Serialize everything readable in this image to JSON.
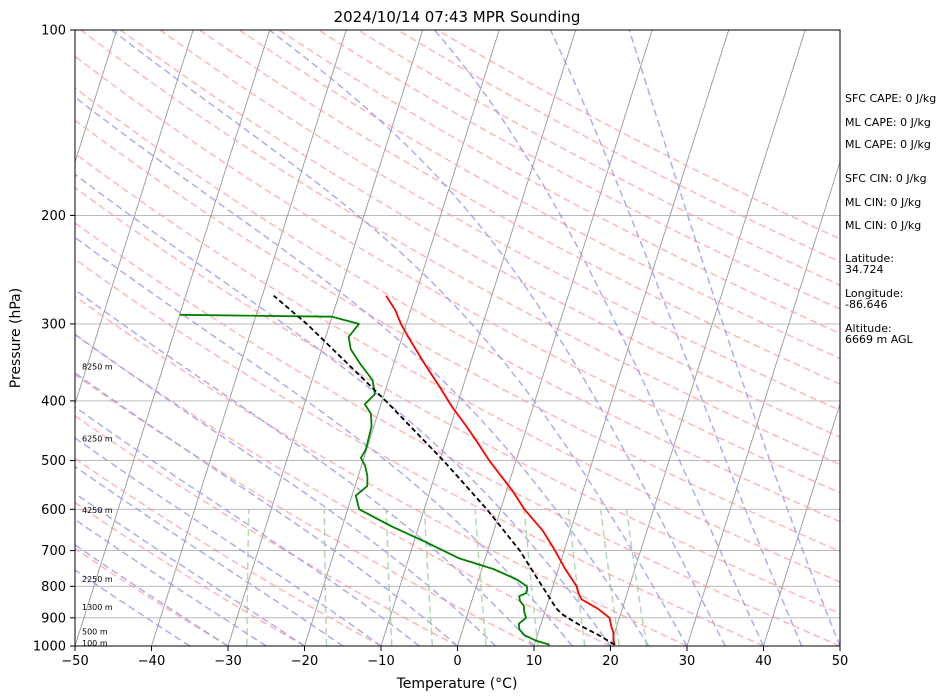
{
  "chart_data": {
    "type": "line",
    "title": "2024/10/14 07:43 MPR Sounding",
    "xlabel": "Temperature (°C)",
    "ylabel": "Pressure (hPa)",
    "xlim": [
      -50,
      50
    ],
    "ylim": [
      1000,
      100
    ],
    "y_scale": "log",
    "x_ticks": [
      -50,
      -40,
      -30,
      -20,
      -10,
      0,
      10,
      20,
      30,
      40,
      50
    ],
    "y_ticks": [
      1000,
      900,
      800,
      700,
      600,
      500,
      400,
      300,
      200,
      100
    ],
    "grid": "horizontal isobars",
    "colors": {
      "temperature": "#ff0000",
      "dewpoint": "#008000",
      "parcel": "#000000",
      "dry_adiabats": "#ff9999",
      "moist_adiabats": "#9999ee",
      "mixing_ratio": "#99cc99",
      "isotherms": "#999999"
    },
    "series": [
      {
        "key": "temperature",
        "points": [
          [
            995,
            20.5
          ],
          [
            980,
            20.2
          ],
          [
            950,
            19.8
          ],
          [
            930,
            19.3
          ],
          [
            900,
            18.7
          ],
          [
            870,
            16.8
          ],
          [
            840,
            14.3
          ],
          [
            820,
            13.6
          ],
          [
            800,
            13.1
          ],
          [
            750,
            10.9
          ],
          [
            700,
            8.8
          ],
          [
            650,
            6.4
          ],
          [
            600,
            3.1
          ],
          [
            560,
            0.8
          ],
          [
            530,
            -1.3
          ],
          [
            500,
            -3.5
          ],
          [
            470,
            -5.6
          ],
          [
            440,
            -7.9
          ],
          [
            410,
            -10.5
          ],
          [
            380,
            -13.0
          ],
          [
            350,
            -15.8
          ],
          [
            320,
            -18.7
          ],
          [
            300,
            -20.7
          ],
          [
            285,
            -22.0
          ],
          [
            270,
            -23.8
          ]
        ]
      },
      {
        "key": "dewpoint",
        "points": [
          [
            995,
            12.0
          ],
          [
            980,
            10.0
          ],
          [
            960,
            8.3
          ],
          [
            940,
            7.4
          ],
          [
            920,
            7.1
          ],
          [
            900,
            7.8
          ],
          [
            880,
            7.3
          ],
          [
            860,
            7.0
          ],
          [
            845,
            6.3
          ],
          [
            830,
            6.0
          ],
          [
            820,
            6.8
          ],
          [
            810,
            6.8
          ],
          [
            800,
            6.6
          ],
          [
            780,
            5.0
          ],
          [
            750,
            1.5
          ],
          [
            720,
            -3.5
          ],
          [
            680,
            -8.2
          ],
          [
            640,
            -13.5
          ],
          [
            600,
            -18.5
          ],
          [
            570,
            -19.5
          ],
          [
            550,
            -18.4
          ],
          [
            530,
            -18.8
          ],
          [
            510,
            -19.5
          ],
          [
            495,
            -20.4
          ],
          [
            480,
            -20.1
          ],
          [
            460,
            -20.2
          ],
          [
            440,
            -20.3
          ],
          [
            420,
            -20.9
          ],
          [
            405,
            -22.1
          ],
          [
            390,
            -21.2
          ],
          [
            370,
            -22.1
          ],
          [
            350,
            -24.2
          ],
          [
            330,
            -26.2
          ],
          [
            315,
            -27.0
          ],
          [
            300,
            -26.2
          ],
          [
            292,
            -30.0
          ],
          [
            290,
            -50.0
          ]
        ]
      },
      {
        "key": "parcel",
        "points": [
          [
            995,
            20.5
          ],
          [
            960,
            18.0
          ],
          [
            930,
            15.5
          ],
          [
            890,
            12.5
          ],
          [
            870,
            11.4
          ],
          [
            800,
            8.6
          ],
          [
            700,
            4.2
          ],
          [
            600,
            -1.8
          ],
          [
            500,
            -9.5
          ],
          [
            400,
            -19.5
          ],
          [
            300,
            -33.0
          ],
          [
            270,
            -38.5
          ]
        ]
      }
    ],
    "height_labels": [
      {
        "label": "100 m",
        "p": 988
      },
      {
        "label": "500 m",
        "p": 948
      },
      {
        "label": "1300 m",
        "p": 864
      },
      {
        "label": "2250 m",
        "p": 779
      },
      {
        "label": "4250 m",
        "p": 601
      },
      {
        "label": "6250 m",
        "p": 460
      },
      {
        "label": "8250 m",
        "p": 352
      }
    ],
    "info_panel": [
      "SFC CAPE: 0 J/kg",
      "ML CAPE: 0 J/kg",
      "ML CAPE: 0 J/kg",
      "SFC CIN: 0 J/kg",
      "ML CIN: 0 J/kg",
      "ML CIN: 0 J/kg",
      "Latitude:",
      "34.724",
      "Longitude:",
      "-86.646",
      "Altitude:",
      "6669 m AGL"
    ]
  }
}
